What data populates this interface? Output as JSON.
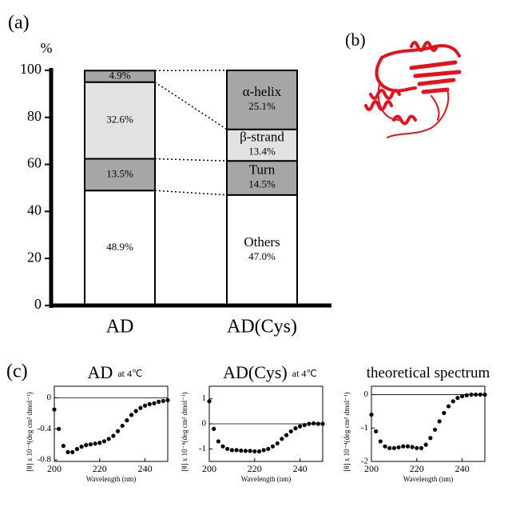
{
  "panel_labels": [
    "(a)",
    "(b)",
    "(c)"
  ],
  "chart_data": [
    {
      "type": "stacked_bar",
      "ylabel": "%",
      "categories": [
        "AD",
        "AD(Cys)"
      ],
      "ylim": [
        0,
        100
      ],
      "yticks": [
        0,
        20,
        40,
        60,
        80,
        100
      ],
      "series": [
        {
          "name": "Others",
          "color": "#ffffff",
          "values": [
            48.9,
            47.0
          ],
          "value_labels": [
            "48.9%",
            "47.0%"
          ]
        },
        {
          "name": "Turn",
          "color": "#a6a6a6",
          "values": [
            13.5,
            14.5
          ],
          "value_labels": [
            "13.5%",
            "14.5%"
          ]
        },
        {
          "name": "β-strand",
          "color": "#e2e2e2",
          "values": [
            32.6,
            13.4
          ],
          "value_labels": [
            "32.6%",
            "13.4%"
          ]
        },
        {
          "name": "α-helix",
          "color": "#a6a6a6",
          "values": [
            4.9,
            25.1
          ],
          "value_labels": [
            "4.9%",
            "25.1%"
          ]
        }
      ]
    },
    {
      "type": "scatter",
      "title": "AD",
      "subtitle": "at 4℃",
      "xlabel": "Wavelength (nm)",
      "ylabel": "[θ] x 10⁻⁴(deg cm² dmol⁻¹)",
      "xlim": [
        200,
        250
      ],
      "xticks": [
        200,
        220,
        240
      ],
      "ylim": [
        -0.82,
        0.15
      ],
      "yticks": [
        -0.8,
        -0.4,
        0
      ],
      "zero_line": true,
      "color": "#000000",
      "x": [
        200,
        202,
        204,
        206,
        208,
        210,
        212,
        214,
        216,
        218,
        220,
        222,
        224,
        226,
        228,
        230,
        232,
        234,
        236,
        238,
        240,
        242,
        244,
        246,
        248,
        250
      ],
      "values": [
        -0.15,
        -0.4,
        -0.62,
        -0.7,
        -0.7,
        -0.66,
        -0.63,
        -0.61,
        -0.6,
        -0.59,
        -0.58,
        -0.56,
        -0.53,
        -0.49,
        -0.43,
        -0.36,
        -0.29,
        -0.22,
        -0.17,
        -0.13,
        -0.1,
        -0.08,
        -0.07,
        -0.05,
        -0.04,
        -0.03
      ]
    },
    {
      "type": "scatter",
      "title": "AD(Cys)",
      "subtitle": "at 4℃",
      "xlabel": "Wavelength (nm)",
      "ylabel": "[θ] x 10⁻⁴(deg cm² dmol⁻¹)",
      "xlim": [
        200,
        250
      ],
      "xticks": [
        200,
        220,
        240
      ],
      "ylim": [
        -1.5,
        1.5
      ],
      "yticks": [
        -1,
        0,
        1
      ],
      "zero_line": true,
      "color": "#000000",
      "x": [
        200,
        202,
        204,
        206,
        208,
        210,
        212,
        214,
        216,
        218,
        220,
        222,
        224,
        226,
        228,
        230,
        232,
        234,
        236,
        238,
        240,
        242,
        244,
        246,
        248,
        250
      ],
      "values": [
        0.9,
        -0.2,
        -0.7,
        -0.9,
        -1.0,
        -1.05,
        -1.05,
        -1.07,
        -1.08,
        -1.08,
        -1.1,
        -1.1,
        -1.05,
        -1.0,
        -0.9,
        -0.78,
        -0.6,
        -0.45,
        -0.3,
        -0.18,
        -0.1,
        -0.05,
        0.0,
        0.02,
        0.0,
        0.0
      ]
    },
    {
      "type": "scatter",
      "title": "theoretical spectrum",
      "xlabel": "Wavelength (nm)",
      "ylabel": "[θ] x 10⁻⁴(deg cm² dmol⁻¹)",
      "xlim": [
        200,
        250
      ],
      "xticks": [
        200,
        220,
        240
      ],
      "ylim": [
        -2,
        0.25
      ],
      "yticks": [
        -2,
        -1,
        0
      ],
      "zero_line": true,
      "color": "#000000",
      "x": [
        200,
        202,
        204,
        206,
        208,
        210,
        212,
        214,
        216,
        218,
        220,
        222,
        224,
        226,
        228,
        230,
        232,
        234,
        236,
        238,
        240,
        242,
        244,
        246,
        248,
        250
      ],
      "values": [
        -0.6,
        -1.1,
        -1.4,
        -1.55,
        -1.6,
        -1.6,
        -1.58,
        -1.55,
        -1.55,
        -1.57,
        -1.6,
        -1.6,
        -1.5,
        -1.3,
        -1.05,
        -0.8,
        -0.55,
        -0.35,
        -0.2,
        -0.1,
        -0.05,
        -0.02,
        0,
        0,
        0,
        0
      ]
    }
  ]
}
